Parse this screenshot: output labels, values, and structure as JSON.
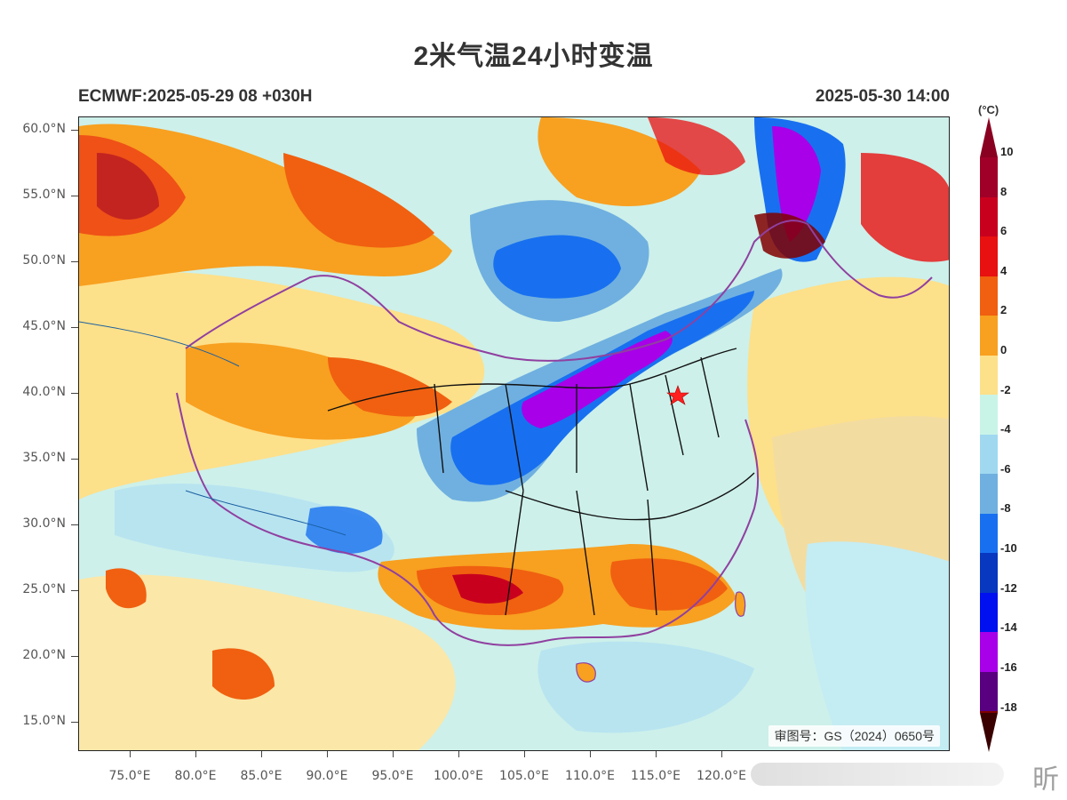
{
  "header": {
    "title": "2米气温24小时变温",
    "model_run": "ECMWF:2025-05-29 08 +030H",
    "valid_time": "2025-05-30 14:00"
  },
  "map": {
    "latitude_labels": [
      "60.0°N",
      "55.0°N",
      "50.0°N",
      "45.0°N",
      "40.0°N",
      "35.0°N",
      "30.0°N",
      "25.0°N",
      "20.0°N",
      "15.0°N"
    ],
    "longitude_labels": [
      "75.0°E",
      "80.0°E",
      "85.0°E",
      "90.0°E",
      "95.0°E",
      "100.0°E",
      "105.0°E",
      "110.0°E",
      "115.0°E",
      "120.0°E"
    ],
    "review_number": "审图号：GS（2024）0650号",
    "marker_icon": "red-star-icon"
  },
  "colorbar": {
    "unit": "(°C)",
    "labels": [
      "10",
      "8",
      "6",
      "4",
      "2",
      "0",
      "-2",
      "-4",
      "-6",
      "-8",
      "-10",
      "-12",
      "-14",
      "-16",
      "-18"
    ],
    "colors": [
      "#a00028",
      "#c8001e",
      "#e81010",
      "#f06010",
      "#f8a020",
      "#fde08a",
      "#c8f4e8",
      "#a0d8f0",
      "#70b0e0",
      "#1870f0",
      "#0838c0",
      "#0010f0",
      "#a800e8",
      "#580080",
      "#800000"
    ],
    "top_color": "#8a0020",
    "bottom_color": "#3a0000"
  },
  "watermark": {
    "text": "昕"
  }
}
